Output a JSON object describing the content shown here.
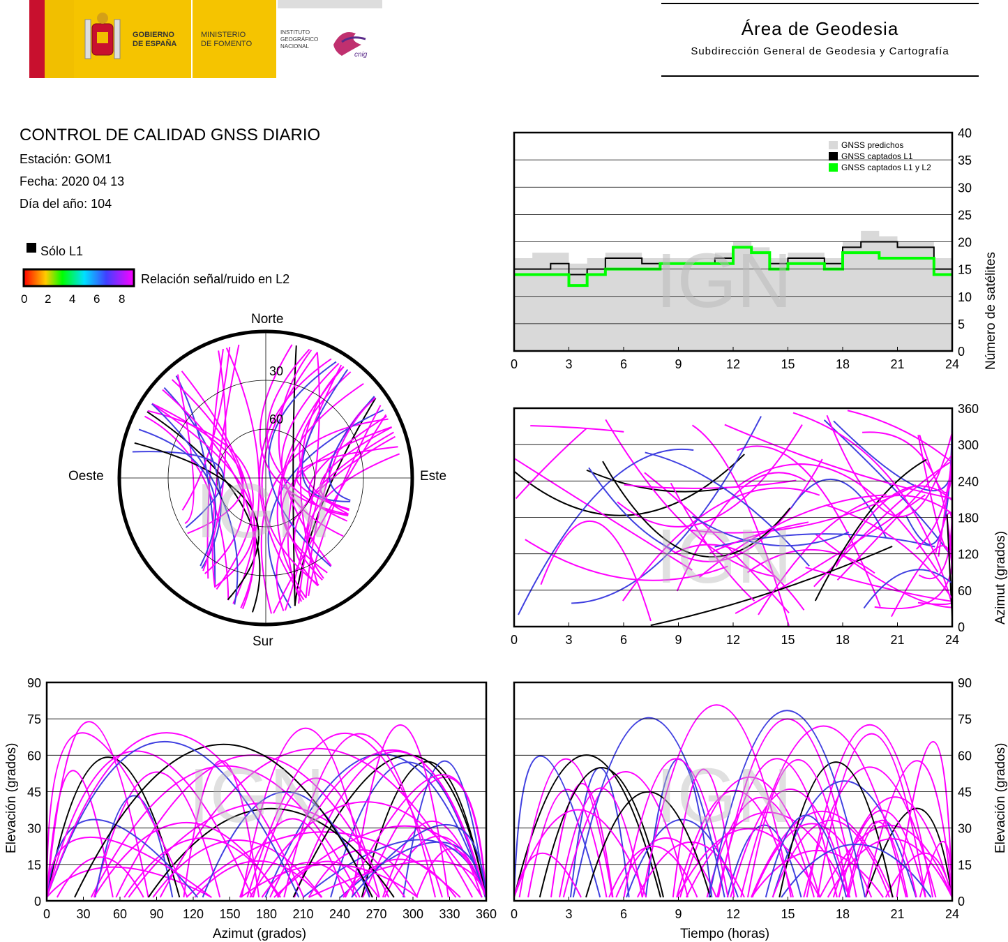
{
  "header": {
    "gobierno": "GOBIERNO\nDE ESPAÑA",
    "ministerio": "MINISTERIO\nDE FOMENTO",
    "instituto": "INSTITUTO\nGEOGRÁFICO\nNACIONAL",
    "cnig": "cnig",
    "area_title": "Área de Geodesia",
    "area_subtitle": "Subdirección General de Geodesia y Cartografía"
  },
  "report": {
    "title": "CONTROL DE CALIDAD GNSS DIARIO",
    "station": "Estación: GOM1",
    "date": "Fecha: 2020 04 13",
    "doy": "Día del año: 104"
  },
  "colors": {
    "l1_only": "#000000",
    "snr_high": "#ff00ff",
    "snr_mid": "#4040e0",
    "predicted": "#d9d9d9",
    "l1l2": "#00ff00"
  },
  "skyplot": {
    "l1_legend": "Sólo L1",
    "snr_legend": "Relación señal/ruido en L2",
    "snr_ticks": [
      "0",
      "2",
      "4",
      "6",
      "8"
    ],
    "north": "Norte",
    "south": "Sur",
    "west": "Oeste",
    "east": "Este",
    "ring_labels": [
      "30",
      "60"
    ],
    "watermark": "IGN"
  },
  "chart_data": [
    {
      "type": "area",
      "ylabel": "Número de satélites",
      "ylim": [
        0,
        40
      ],
      "yticks": [
        "0",
        "5",
        "10",
        "15",
        "20",
        "25",
        "30",
        "35",
        "40"
      ],
      "xlim": [
        0,
        24
      ],
      "xticks": [
        "0",
        "3",
        "6",
        "9",
        "12",
        "15",
        "18",
        "21",
        "24"
      ],
      "legend": [
        "GNSS predichos",
        "GNSS captados L1",
        "GNSS captados L1 y L2"
      ],
      "legend_position": "top-right",
      "x": [
        0,
        1,
        2,
        3,
        4,
        5,
        6,
        7,
        8,
        9,
        10,
        11,
        12,
        13,
        14,
        15,
        16,
        17,
        18,
        19,
        20,
        21,
        22,
        23,
        24
      ],
      "series": [
        {
          "name": "GNSS predichos",
          "values": [
            17,
            18,
            18,
            16,
            17,
            18,
            18,
            17,
            17,
            17,
            17,
            18,
            20,
            19,
            17,
            18,
            18,
            17,
            20,
            22,
            21,
            20,
            20,
            17,
            17
          ]
        },
        {
          "name": "GNSS captados L1",
          "values": [
            15,
            15,
            16,
            14,
            15,
            17,
            17,
            16,
            16,
            16,
            16,
            17,
            19,
            18,
            16,
            17,
            17,
            16,
            19,
            20,
            20,
            19,
            19,
            15,
            15
          ]
        },
        {
          "name": "GNSS captados L1 y L2",
          "values": [
            14,
            14,
            14,
            12,
            14,
            15,
            15,
            15,
            16,
            16,
            16,
            16,
            19,
            18,
            15,
            16,
            16,
            15,
            18,
            18,
            17,
            17,
            17,
            14,
            14
          ]
        }
      ],
      "grid": true,
      "watermark": "IGN"
    },
    {
      "type": "scatter",
      "ylabel": "Azimut (grados)",
      "ylim": [
        0,
        360
      ],
      "yticks": [
        "0",
        "60",
        "120",
        "180",
        "240",
        "300",
        "360"
      ],
      "xlim": [
        0,
        24
      ],
      "xticks": [
        "0",
        "3",
        "6",
        "9",
        "12",
        "15",
        "18",
        "21",
        "24"
      ],
      "grid": true,
      "watermark": "IGN"
    },
    {
      "type": "scatter",
      "xlabel": "Azimut (grados)",
      "ylabel": "Elevación (grados)",
      "xlim": [
        0,
        360
      ],
      "ylim": [
        0,
        90
      ],
      "xticks": [
        "0",
        "30",
        "60",
        "90",
        "120",
        "150",
        "180",
        "210",
        "240",
        "270",
        "300",
        "330",
        "360"
      ],
      "yticks": [
        "0",
        "15",
        "30",
        "45",
        "60",
        "75",
        "90"
      ],
      "grid": true,
      "watermark": "IGN"
    },
    {
      "type": "scatter",
      "xlabel": "Tiempo (horas)",
      "ylabel": "Elevación (grados)",
      "xlim": [
        0,
        24
      ],
      "ylim": [
        0,
        90
      ],
      "xticks": [
        "0",
        "3",
        "6",
        "9",
        "12",
        "15",
        "18",
        "21",
        "24"
      ],
      "yticks": [
        "0",
        "15",
        "30",
        "45",
        "60",
        "75",
        "90"
      ],
      "grid": true,
      "watermark": "IGN"
    }
  ]
}
